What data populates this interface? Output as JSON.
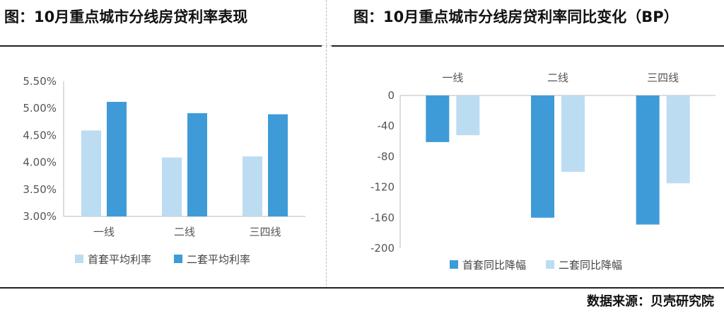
{
  "left_title": "图：10月重点城市分线房贷利率表现",
  "right_title": "图：10月重点城市分线房贷利率同比变化（BP）",
  "source": "数据来源：贝壳研究院",
  "colors": {
    "first": "#bcdcf2",
    "second": "#3e9bd8",
    "axis": "#bbbbbb"
  },
  "chart_data": [
    {
      "type": "bar",
      "title": "图：10月重点城市分线房贷利率表现",
      "categories": [
        "一线",
        "二线",
        "三四线"
      ],
      "ylim": [
        3.0,
        5.5
      ],
      "yticks": [
        "3.00%",
        "3.50%",
        "4.00%",
        "4.50%",
        "5.00%",
        "5.50%"
      ],
      "ytick_values": [
        3.0,
        3.5,
        4.0,
        4.5,
        5.0,
        5.5
      ],
      "grid": false,
      "legend_position": "bottom",
      "series": [
        {
          "name": "首套平均利率",
          "values": [
            4.59,
            4.09,
            4.11
          ],
          "color": "#bcdcf2"
        },
        {
          "name": "二套平均利率",
          "values": [
            5.12,
            4.91,
            4.89
          ],
          "color": "#3e9bd8"
        }
      ]
    },
    {
      "type": "bar",
      "title": "图：10月重点城市分线房贷利率同比变化（BP）",
      "categories": [
        "一线",
        "二线",
        "三四线"
      ],
      "ylim": [
        -200,
        0
      ],
      "yticks": [
        "0",
        "-40",
        "-80",
        "-120",
        "-160",
        "-200"
      ],
      "ytick_values": [
        0,
        -40,
        -80,
        -120,
        -160,
        -200
      ],
      "grid": false,
      "legend_position": "bottom",
      "series": [
        {
          "name": "首套同比降幅",
          "values": [
            -61,
            -160,
            -169
          ],
          "color": "#3e9bd8"
        },
        {
          "name": "二套同比降幅",
          "values": [
            -52,
            -100,
            -115
          ],
          "color": "#bcdcf2"
        }
      ]
    }
  ]
}
